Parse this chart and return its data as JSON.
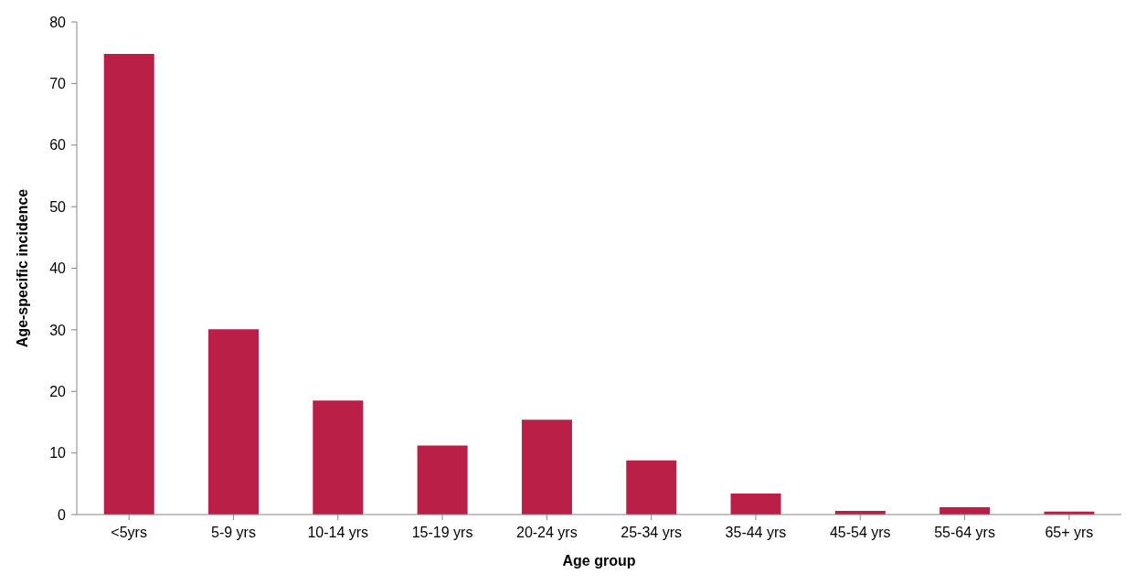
{
  "chart_data": {
    "type": "bar",
    "xlabel": "Age group",
    "ylabel": "Age-specific incidence",
    "categories": [
      "<5yrs",
      "5-9 yrs",
      "10-14 yrs",
      "15-19 yrs",
      "20-24 yrs",
      "25-34 yrs",
      "35-44 yrs",
      "45-54 yrs",
      "55-64 yrs",
      "65+ yrs"
    ],
    "values": [
      74.8,
      30.1,
      18.5,
      11.2,
      15.4,
      8.8,
      3.4,
      0.6,
      1.2,
      0.5
    ],
    "color": "#b91f47",
    "ylim": [
      0,
      80
    ],
    "yticks": [
      0,
      10,
      20,
      30,
      40,
      50,
      60,
      70,
      80
    ],
    "grid": false,
    "legend": false
  }
}
